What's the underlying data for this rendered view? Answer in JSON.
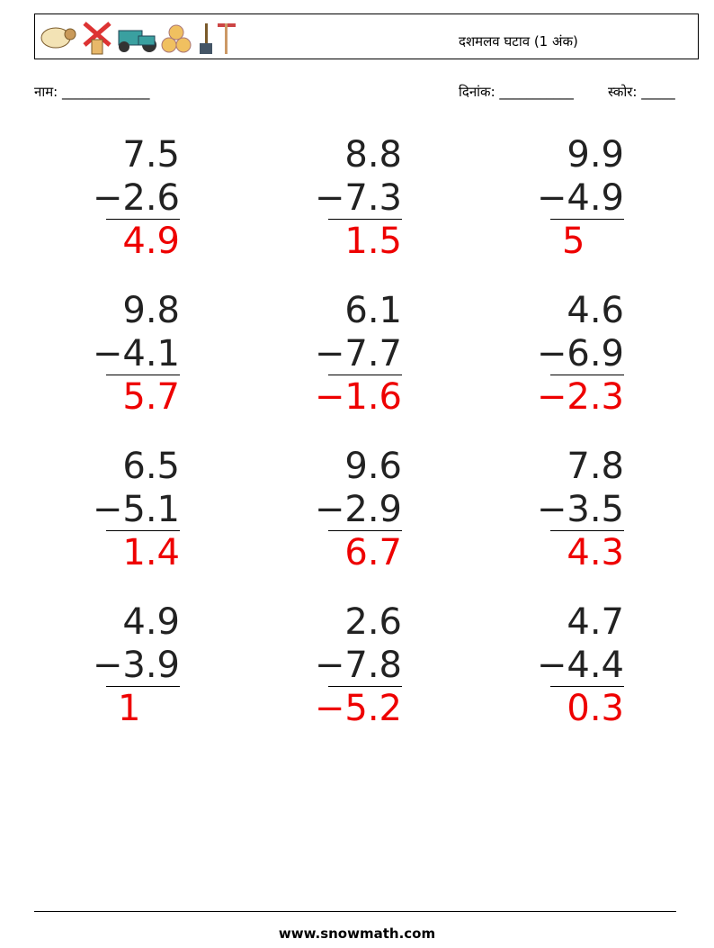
{
  "header": {
    "title": "दशमलव घटाव (1 अंक)"
  },
  "fields": {
    "name": "नाम: _____________",
    "date": "दिनांक: ___________",
    "score": "स्कोर: _____"
  },
  "problems": [
    {
      "top": "7.5",
      "bottom": "−2.6",
      "answer": "4.9"
    },
    {
      "top": "8.8",
      "bottom": "−7.3",
      "answer": "1.5"
    },
    {
      "top": "9.9",
      "bottom": "−4.9",
      "answer": "5"
    },
    {
      "top": "9.8",
      "bottom": "−4.1",
      "answer": "5.7"
    },
    {
      "top": "6.1",
      "bottom": "−7.7",
      "answer": "−1.6"
    },
    {
      "top": "4.6",
      "bottom": "−6.9",
      "answer": "−2.3"
    },
    {
      "top": "6.5",
      "bottom": "−5.1",
      "answer": "1.4"
    },
    {
      "top": "9.6",
      "bottom": "−2.9",
      "answer": "6.7"
    },
    {
      "top": "7.8",
      "bottom": "−3.5",
      "answer": "4.3"
    },
    {
      "top": "4.9",
      "bottom": "−3.9",
      "answer": "1"
    },
    {
      "top": "2.6",
      "bottom": "−7.8",
      "answer": "−5.2"
    },
    {
      "top": "4.7",
      "bottom": "−4.4",
      "answer": "0.3"
    }
  ],
  "footer": {
    "site": "www.snowmath.com"
  }
}
